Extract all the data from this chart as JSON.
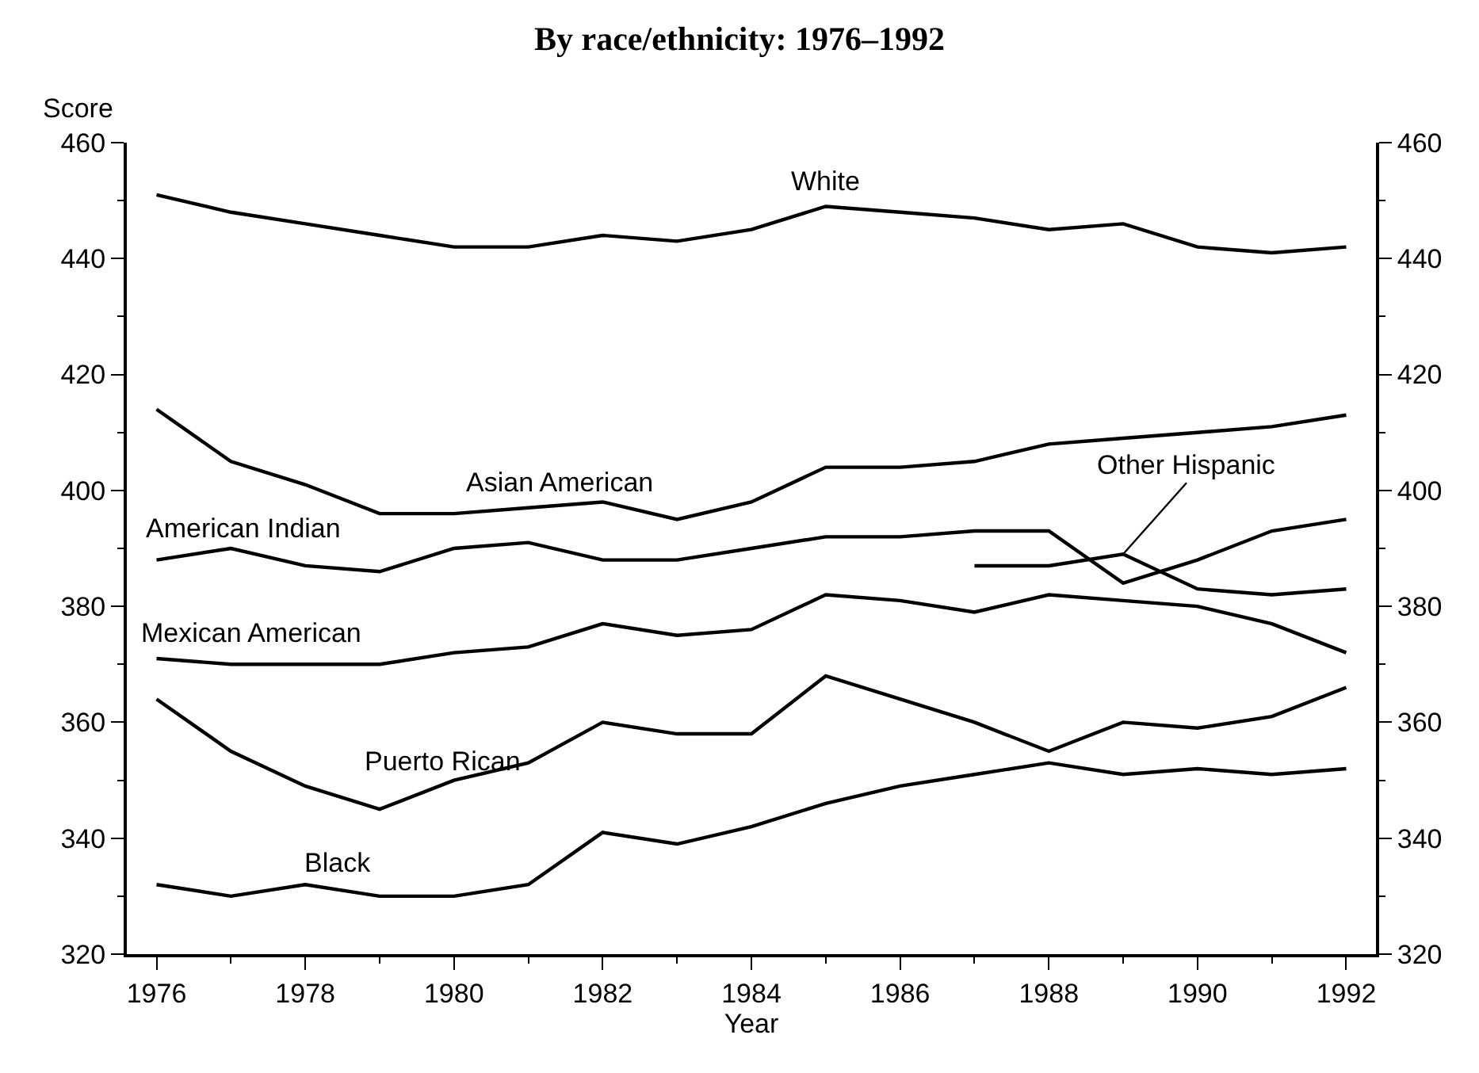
{
  "chart_data": {
    "type": "line",
    "title": "By race/ethnicity: 1976–1992",
    "xlabel": "Year",
    "ylabel": "Score",
    "x": [
      1976,
      1977,
      1978,
      1979,
      1980,
      1981,
      1982,
      1983,
      1984,
      1985,
      1986,
      1987,
      1988,
      1989,
      1990,
      1991,
      1992
    ],
    "series": [
      {
        "name": "White",
        "color": "#000000",
        "values": [
          451,
          448,
          446,
          444,
          442,
          442,
          444,
          443,
          445,
          449,
          448,
          447,
          445,
          446,
          442,
          441,
          442
        ]
      },
      {
        "name": "Asian American",
        "color": "#000000",
        "values": [
          414,
          405,
          401,
          396,
          396,
          397,
          398,
          395,
          398,
          404,
          404,
          405,
          408,
          409,
          410,
          411,
          413
        ]
      },
      {
        "name": "American Indian",
        "color": "#000000",
        "values": [
          388,
          390,
          387,
          386,
          390,
          391,
          388,
          388,
          390,
          392,
          392,
          393,
          393,
          384,
          388,
          393,
          395
        ]
      },
      {
        "name": "Other Hispanic",
        "color": "#000000",
        "x": [
          1987,
          1988,
          1989,
          1990,
          1991,
          1992
        ],
        "values": [
          387,
          387,
          389,
          383,
          382,
          383
        ]
      },
      {
        "name": "Mexican American",
        "color": "#000000",
        "values": [
          371,
          370,
          370,
          370,
          372,
          373,
          377,
          375,
          376,
          382,
          381,
          379,
          382,
          381,
          380,
          377,
          372
        ]
      },
      {
        "name": "Puerto Rican",
        "color": "#000000",
        "values": [
          364,
          355,
          349,
          345,
          350,
          353,
          360,
          358,
          358,
          368,
          364,
          360,
          355,
          360,
          359,
          361,
          366
        ]
      },
      {
        "name": "Black",
        "color": "#000000",
        "values": [
          332,
          330,
          332,
          330,
          330,
          332,
          341,
          339,
          342,
          346,
          349,
          351,
          353,
          351,
          352,
          351,
          352
        ]
      }
    ],
    "xlim": [
      1975.6,
      1992.4
    ],
    "xticks": [
      1976,
      1978,
      1980,
      1982,
      1984,
      1986,
      1988,
      1990,
      1992
    ],
    "ylim": [
      320,
      460
    ],
    "yticks": [
      320,
      340,
      360,
      380,
      400,
      420,
      440,
      460
    ],
    "y2lim": [
      320,
      460
    ],
    "y2ticks": [
      320,
      340,
      360,
      380,
      400,
      420,
      440,
      460
    ],
    "legend": false,
    "marker": "none",
    "line_style": "solid"
  }
}
